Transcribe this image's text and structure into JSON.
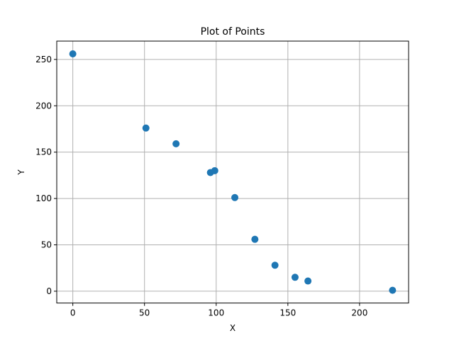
{
  "chart_data": {
    "type": "scatter",
    "title": "Plot of Points",
    "xlabel": "X",
    "ylabel": "Y",
    "xlim": [
      -11.2,
      234.2
    ],
    "ylim": [
      -12.75,
      269.75
    ],
    "x_ticks": [
      0,
      50,
      100,
      150,
      200
    ],
    "y_ticks": [
      0,
      50,
      100,
      150,
      200,
      250
    ],
    "grid": true,
    "marker_color": "#1f77b4",
    "points": [
      {
        "x": 0,
        "y": 256
      },
      {
        "x": 51,
        "y": 176
      },
      {
        "x": 72,
        "y": 159
      },
      {
        "x": 96,
        "y": 128
      },
      {
        "x": 99,
        "y": 130
      },
      {
        "x": 113,
        "y": 101
      },
      {
        "x": 127,
        "y": 56
      },
      {
        "x": 141,
        "y": 28
      },
      {
        "x": 155,
        "y": 15
      },
      {
        "x": 164,
        "y": 11
      },
      {
        "x": 223,
        "y": 1
      }
    ]
  }
}
